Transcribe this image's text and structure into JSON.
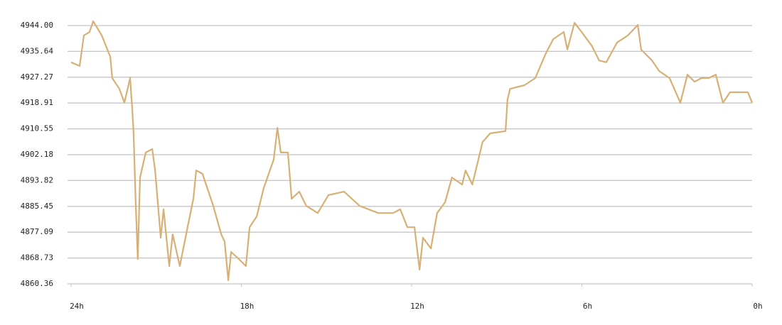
{
  "chart_data": {
    "type": "line",
    "x": [
      24.0,
      23.7,
      23.55,
      23.35,
      23.22,
      22.92,
      22.62,
      22.55,
      22.3,
      22.12,
      21.92,
      21.85,
      21.8,
      21.72,
      21.65,
      21.57,
      21.37,
      21.14,
      21.04,
      20.84,
      20.74,
      20.54,
      20.42,
      20.17,
      19.92,
      19.69,
      19.59,
      19.37,
      18.99,
      18.71,
      18.59,
      18.46,
      18.36,
      18.09,
      17.84,
      17.71,
      17.46,
      17.21,
      16.86,
      16.73,
      16.61,
      16.36,
      16.23,
      15.96,
      15.71,
      15.31,
      14.93,
      14.38,
      13.83,
      13.18,
      12.65,
      12.4,
      12.15,
      11.9,
      11.72,
      11.6,
      11.32,
      11.1,
      10.82,
      10.58,
      10.22,
      10.1,
      9.86,
      9.5,
      9.23,
      8.69,
      8.62,
      8.53,
      8.02,
      7.64,
      7.27,
      7.01,
      6.64,
      6.51,
      6.26,
      6.01,
      5.64,
      5.39,
      5.14,
      4.76,
      4.38,
      4.03,
      3.91,
      3.53,
      3.28,
      2.91,
      2.53,
      2.28,
      2.03,
      1.78,
      1.53,
      1.28,
      1.03,
      0.78,
      0.4,
      0.15,
      0.0
    ],
    "series": [
      {
        "color": "#d6b074",
        "values": [
          4932.1,
          4930.9,
          4940.8,
          4941.9,
          4945.4,
          4940.8,
          4933.9,
          4927.0,
          4923.5,
          4919.0,
          4927.0,
          4917.8,
          4909.8,
          4885.6,
          4868.4,
          4894.8,
          4902.9,
          4904.0,
          4897.1,
          4875.3,
          4884.5,
          4866.1,
          4876.4,
          4866.1,
          4877.6,
          4887.9,
          4897.1,
          4896.0,
          4885.6,
          4876.4,
          4874.1,
          4861.5,
          4870.7,
          4868.4,
          4866.1,
          4878.7,
          4882.2,
          4891.4,
          4900.6,
          4910.9,
          4902.9,
          4902.9,
          4887.9,
          4890.2,
          4885.6,
          4883.3,
          4889.1,
          4890.2,
          4885.6,
          4883.3,
          4883.3,
          4884.5,
          4878.7,
          4878.7,
          4865.0,
          4875.3,
          4871.8,
          4883.3,
          4886.8,
          4894.8,
          4892.5,
          4897.1,
          4892.5,
          4906.3,
          4909.1,
          4909.8,
          4920.1,
          4923.5,
          4924.7,
          4927.0,
          4935.0,
          4939.6,
          4941.9,
          4936.2,
          4944.9,
          4941.9,
          4937.3,
          4932.7,
          4932.1,
          4938.5,
          4940.8,
          4944.2,
          4936.2,
          4932.7,
          4929.3,
          4927.0,
          4919.0,
          4928.1,
          4925.8,
          4927.0,
          4927.0,
          4928.1,
          4919.0,
          4922.4,
          4922.4,
          4922.4,
          4919.0
        ]
      }
    ],
    "xlim": [
      24,
      0
    ],
    "xticks": [
      {
        "value": 24,
        "label": "24h"
      },
      {
        "value": 18,
        "label": "18h"
      },
      {
        "value": 12,
        "label": "12h"
      },
      {
        "value": 6,
        "label": "6h"
      },
      {
        "value": 0,
        "label": "0h"
      }
    ],
    "ylim": [
      4860.36,
      4944
    ],
    "yticks": [
      4860.36,
      4868.73,
      4877.09,
      4885.45,
      4893.82,
      4902.18,
      4910.55,
      4918.91,
      4927.27,
      4935.64,
      {
        "value": 4944,
        "label": "4944.00"
      }
    ],
    "grid": true
  }
}
